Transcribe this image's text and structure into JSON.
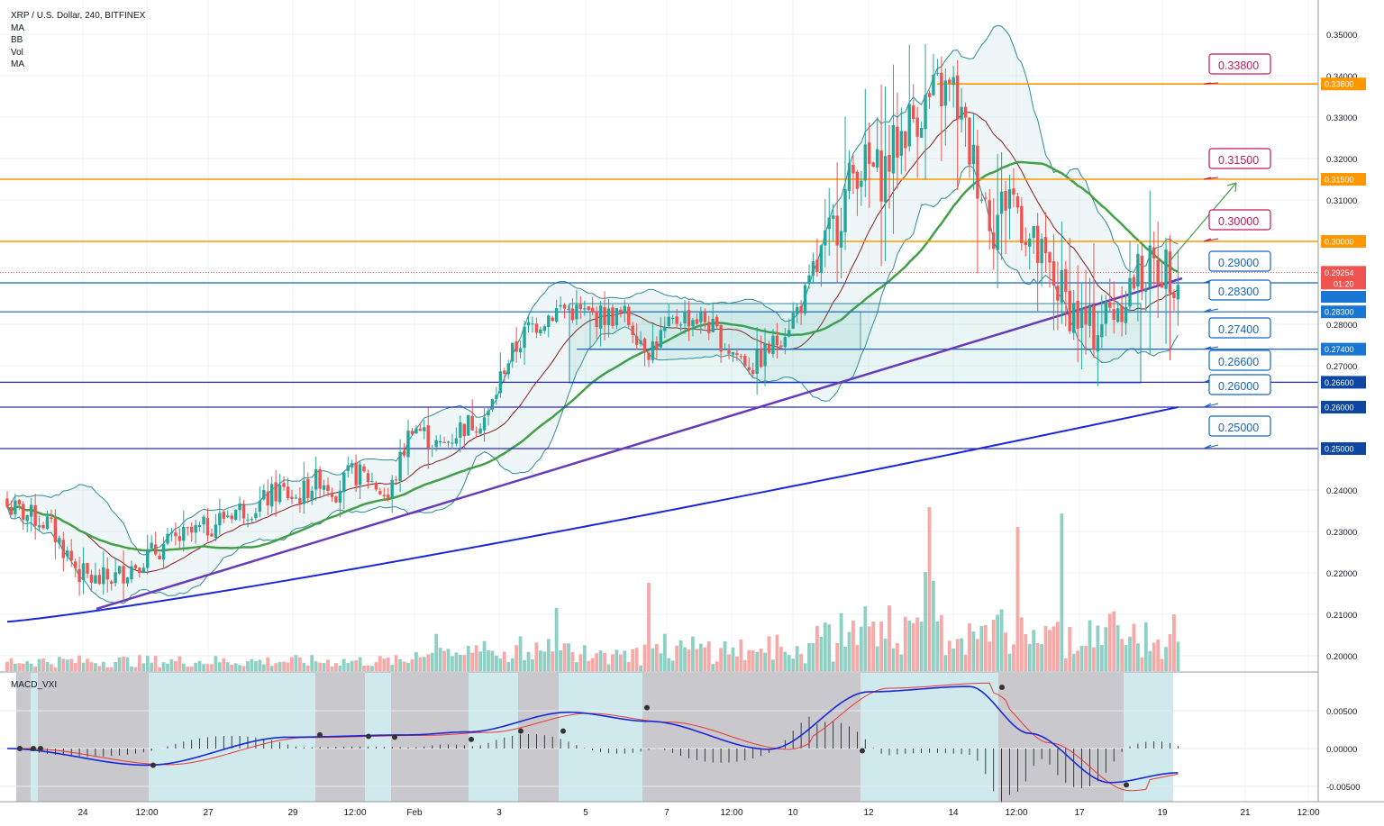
{
  "legend": {
    "title": "XRP / U.S. Dollar, 240, BITFINEX",
    "items": [
      "MA",
      "BB",
      "Vol",
      "MA"
    ]
  },
  "macd_label": "MACD_VXI",
  "price_axis": {
    "ticks": [
      "0.35000",
      "0.34000",
      "0.33000",
      "0.32000",
      "0.31000",
      "0.30000",
      "0.29000",
      "0.28000",
      "0.27000",
      "0.26000",
      "0.25000",
      "0.24000",
      "0.23000",
      "0.22000",
      "0.21000",
      "0.20000"
    ],
    "tick_values": [
      0.35,
      0.34,
      0.33,
      0.32,
      0.31,
      0.3,
      0.29,
      0.28,
      0.27,
      0.26,
      0.25,
      0.24,
      0.23,
      0.22,
      0.21,
      0.2
    ],
    "current_price": "0.29254",
    "countdown": "01:20",
    "tags": [
      {
        "value": "0.33800",
        "color": "#ff9800"
      },
      {
        "value": "0.31500",
        "color": "#ff9800"
      },
      {
        "value": "0.30000",
        "color": "#ff9800"
      },
      {
        "value": "0.29000",
        "color": "#1976d2"
      },
      {
        "value": "0.28300",
        "color": "#1976d2"
      },
      {
        "value": "0.27400",
        "color": "#1976d2"
      },
      {
        "value": "0.26600",
        "color": "#0d47a1"
      },
      {
        "value": "0.26000",
        "color": "#0d47a1"
      },
      {
        "value": "0.25000",
        "color": "#0d47a1"
      }
    ]
  },
  "macd_axis": {
    "ticks": [
      "0.00500",
      "0.00000",
      "-0.00500"
    ],
    "tick_values": [
      0.005,
      0.0,
      -0.005
    ]
  },
  "time_axis": {
    "labels": [
      "24",
      "12:00",
      "27",
      "29",
      "12:00",
      "Feb",
      "3",
      "5",
      "7",
      "12:00",
      "10",
      "12",
      "14",
      "12:00",
      "17",
      "19",
      "21",
      "12:00"
    ]
  },
  "callouts": [
    {
      "text": "0.33800",
      "kind": "resistance",
      "color": "#c2185b"
    },
    {
      "text": "0.31500",
      "kind": "resistance",
      "color": "#c2185b"
    },
    {
      "text": "0.30000",
      "kind": "resistance",
      "color": "#c2185b"
    },
    {
      "text": "0.29000",
      "kind": "support",
      "color": "#1565c0"
    },
    {
      "text": "0.28300",
      "kind": "support",
      "color": "#1565c0"
    },
    {
      "text": "0.27400",
      "kind": "support",
      "color": "#1565c0"
    },
    {
      "text": "0.26600",
      "kind": "support",
      "color": "#1565c0"
    },
    {
      "text": "0.26000",
      "kind": "support",
      "color": "#1565c0"
    },
    {
      "text": "0.25000",
      "kind": "support",
      "color": "#1565c0"
    }
  ],
  "colors": {
    "up": "#26a69a",
    "down": "#ef5350",
    "vol_up": "#8fd0c5",
    "vol_down": "#f7a9a7",
    "bb": "#2d8b96",
    "ma_green": "#43a047",
    "ma_blue": "#1a27d6",
    "ma_red": "#8b1a1a",
    "trendline": "#673ab7",
    "orange": "#ff9800",
    "blue_line": "#1565c0",
    "dark_blue": "#2a2ac4"
  },
  "chart_data": {
    "type": "candlestick",
    "symbol": "XRP / U.S. Dollar",
    "interval": "240",
    "exchange": "BITFINEX",
    "price_range": [
      0.196,
      0.352
    ],
    "horizontal_levels": [
      0.338,
      0.315,
      0.3,
      0.29,
      0.283,
      0.274,
      0.266,
      0.26,
      0.25
    ],
    "last_price": 0.29254,
    "close_path_approx": [
      [
        0,
        0.236
      ],
      [
        10,
        0.232
      ],
      [
        18,
        0.22
      ],
      [
        22,
        0.218
      ],
      [
        27,
        0.219
      ],
      [
        33,
        0.223
      ],
      [
        40,
        0.227
      ],
      [
        50,
        0.231
      ],
      [
        56,
        0.235
      ],
      [
        62,
        0.236
      ],
      [
        68,
        0.24
      ],
      [
        72,
        0.238
      ],
      [
        78,
        0.243
      ],
      [
        82,
        0.24
      ],
      [
        86,
        0.244
      ],
      [
        90,
        0.243
      ],
      [
        95,
        0.238
      ],
      [
        101,
        0.256
      ],
      [
        108,
        0.25
      ],
      [
        113,
        0.255
      ],
      [
        120,
        0.258
      ],
      [
        124,
        0.27
      ],
      [
        130,
        0.279
      ],
      [
        138,
        0.284
      ],
      [
        146,
        0.282
      ],
      [
        154,
        0.282
      ],
      [
        160,
        0.274
      ],
      [
        168,
        0.282
      ],
      [
        174,
        0.281
      ],
      [
        180,
        0.274
      ],
      [
        186,
        0.27
      ],
      [
        192,
        0.276
      ],
      [
        198,
        0.285
      ],
      [
        205,
        0.3
      ],
      [
        212,
        0.319
      ],
      [
        218,
        0.316
      ],
      [
        224,
        0.328
      ],
      [
        232,
        0.336
      ],
      [
        236,
        0.336
      ],
      [
        240,
        0.322
      ],
      [
        246,
        0.304
      ],
      [
        250,
        0.313
      ],
      [
        256,
        0.298
      ],
      [
        264,
        0.286
      ],
      [
        270,
        0.278
      ],
      [
        276,
        0.284
      ],
      [
        282,
        0.292
      ],
      [
        288,
        0.294
      ],
      [
        292,
        0.29254
      ]
    ],
    "volume_spikes": [
      "14 Feb 0.231",
      "12:00 0.228",
      "17 0.230"
    ],
    "indicator": "MACD_VXI",
    "macd_range": [
      -0.0065,
      0.0095
    ],
    "macd_line_approx": [
      [
        0,
        0
      ],
      [
        35,
        -0.0022
      ],
      [
        70,
        0.0015
      ],
      [
        100,
        0.0018
      ],
      [
        115,
        0.0022
      ],
      [
        140,
        0.0048
      ],
      [
        160,
        0.0036
      ],
      [
        190,
        -0.0001
      ],
      [
        215,
        0.0075
      ],
      [
        240,
        0.0082
      ],
      [
        255,
        0.002
      ],
      [
        275,
        -0.0045
      ],
      [
        292,
        -0.0032
      ]
    ]
  }
}
